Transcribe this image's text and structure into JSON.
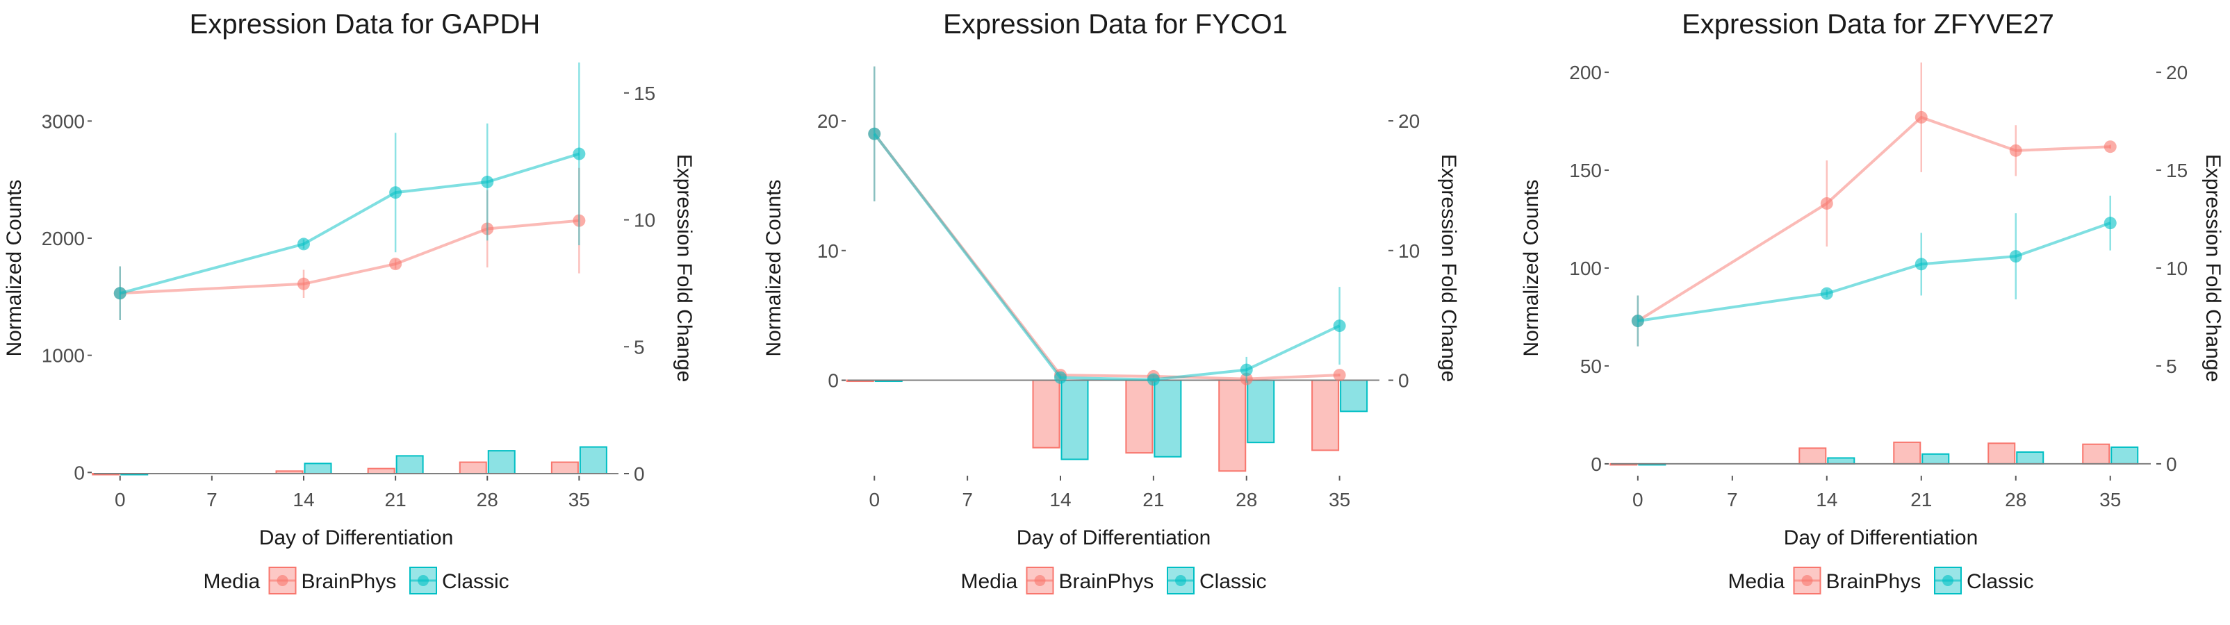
{
  "colors": {
    "BrainPhys": "#F8766D",
    "Classic": "#00BFC4",
    "zero_line": "#7f7f7f",
    "tick": "#595959"
  },
  "chart_data": [
    {
      "type": "line+bar",
      "title": "Expression Data for GAPDH",
      "xlabel": "Day of Differentiation",
      "ylabel": "Normalized Counts",
      "y2label": "Expression Fold Change",
      "x_ticks": [
        0,
        7,
        14,
        21,
        28,
        35
      ],
      "ylim": [
        -10,
        3500
      ],
      "y_ticks": [
        0,
        1000,
        2000,
        3000
      ],
      "y2lim": [
        0,
        16.2
      ],
      "y2_ticks": [
        0,
        5,
        10,
        15
      ],
      "series": [
        {
          "name": "BrainPhys",
          "x": [
            0,
            14,
            21,
            28,
            35
          ],
          "y": [
            1530,
            1610,
            1780,
            2080,
            2150
          ],
          "err": [
            230,
            120,
            40,
            330,
            450
          ],
          "fold_change": [
            0,
            0.1,
            0.2,
            0.45,
            0.45
          ]
        },
        {
          "name": "Classic",
          "x": [
            0,
            14,
            21,
            28,
            35
          ],
          "y": [
            1530,
            1950,
            2390,
            2480,
            2720
          ],
          "err": [
            230,
            40,
            510,
            500,
            780
          ],
          "fold_change": [
            0,
            0.4,
            0.7,
            0.9,
            1.05
          ]
        }
      ]
    },
    {
      "type": "line+bar",
      "title": "Expression Data for FYCO1",
      "xlabel": "Day of Differentiation",
      "ylabel": "Normalized Counts",
      "y2label": "Expression Fold Change",
      "x_ticks": [
        0,
        7,
        14,
        21,
        28,
        35
      ],
      "ylim": [
        -7.2,
        24.5
      ],
      "y_ticks": [
        0,
        10,
        20
      ],
      "y2lim": [
        -7.2,
        24.5
      ],
      "y2_ticks": [
        0,
        10,
        20
      ],
      "series": [
        {
          "name": "BrainPhys",
          "x": [
            0,
            14,
            21,
            28,
            35
          ],
          "y": [
            19,
            0.4,
            0.3,
            0.1,
            0.4
          ],
          "err": [
            5.2,
            0.1,
            0.1,
            0.1,
            0.1
          ],
          "fold_change": [
            0,
            -5.2,
            -5.6,
            -7.0,
            -5.4
          ]
        },
        {
          "name": "Classic",
          "x": [
            0,
            14,
            21,
            28,
            35
          ],
          "y": [
            19,
            0.2,
            0.05,
            0.8,
            4.2
          ],
          "err": [
            5.2,
            0.1,
            0.1,
            1.0,
            3.0
          ],
          "fold_change": [
            0,
            -6.1,
            -5.9,
            -4.8,
            -2.4
          ]
        }
      ]
    },
    {
      "type": "line+bar",
      "title": "Expression Data for ZFYVE27",
      "xlabel": "Day of Differentiation",
      "ylabel": "Normalized Counts",
      "y2label": "Expression Fold Change",
      "x_ticks": [
        0,
        7,
        14,
        21,
        28,
        35
      ],
      "ylim": [
        -5,
        205
      ],
      "y_ticks": [
        0,
        50,
        100,
        150,
        200
      ],
      "y2lim": [
        -0.5,
        20.5
      ],
      "y2_ticks": [
        0,
        5,
        10,
        15,
        20
      ],
      "series": [
        {
          "name": "BrainPhys",
          "x": [
            0,
            14,
            21,
            28,
            35
          ],
          "y": [
            73,
            133,
            177,
            160,
            162
          ],
          "err": [
            13,
            22,
            28,
            13,
            1
          ],
          "fold_change": [
            0,
            0.8,
            1.1,
            1.05,
            1.0
          ]
        },
        {
          "name": "Classic",
          "x": [
            0,
            14,
            21,
            28,
            35
          ],
          "y": [
            73,
            87,
            102,
            106,
            123
          ],
          "err": [
            13,
            2,
            16,
            22,
            14
          ],
          "fold_change": [
            0,
            0.3,
            0.5,
            0.6,
            0.85
          ]
        }
      ]
    }
  ],
  "legend": {
    "title": "Media",
    "items": [
      "BrainPhys",
      "Classic"
    ]
  }
}
